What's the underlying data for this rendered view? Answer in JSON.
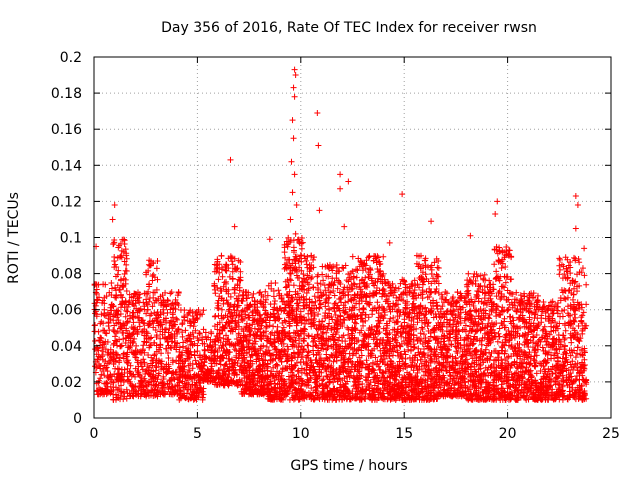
{
  "chart_data": {
    "type": "scatter",
    "title": "Day 356 of 2016, Rate Of TEC Index for receiver rwsn",
    "xlabel": "GPS time / hours",
    "ylabel": "ROTI / TECUs",
    "xlim": [
      0,
      25
    ],
    "ylim": [
      0,
      0.2
    ],
    "x_ticks": [
      "0",
      "5",
      "10",
      "15",
      "20",
      "25"
    ],
    "y_ticks": [
      "0",
      "0.02",
      "0.04",
      "0.06",
      "0.08",
      "0.1",
      "0.12",
      "0.14",
      "0.16",
      "0.18",
      "0.2"
    ],
    "grid": true,
    "marker": "+",
    "color": "#ff0000",
    "notable_points": [
      {
        "x": 9.7,
        "y": 0.193
      },
      {
        "x": 9.75,
        "y": 0.19
      },
      {
        "x": 9.65,
        "y": 0.183
      },
      {
        "x": 9.7,
        "y": 0.178
      },
      {
        "x": 9.6,
        "y": 0.165
      },
      {
        "x": 9.65,
        "y": 0.155
      },
      {
        "x": 9.55,
        "y": 0.142
      },
      {
        "x": 9.7,
        "y": 0.135
      },
      {
        "x": 9.6,
        "y": 0.125
      },
      {
        "x": 9.8,
        "y": 0.118
      },
      {
        "x": 9.5,
        "y": 0.11
      },
      {
        "x": 9.75,
        "y": 0.102
      },
      {
        "x": 10.8,
        "y": 0.169
      },
      {
        "x": 10.85,
        "y": 0.151
      },
      {
        "x": 11.9,
        "y": 0.135
      },
      {
        "x": 12.3,
        "y": 0.131
      },
      {
        "x": 11.9,
        "y": 0.127
      },
      {
        "x": 6.6,
        "y": 0.143
      },
      {
        "x": 14.9,
        "y": 0.124
      },
      {
        "x": 1.0,
        "y": 0.118
      },
      {
        "x": 0.9,
        "y": 0.11
      },
      {
        "x": 19.5,
        "y": 0.12
      },
      {
        "x": 19.4,
        "y": 0.113
      },
      {
        "x": 23.3,
        "y": 0.123
      },
      {
        "x": 23.4,
        "y": 0.118
      },
      {
        "x": 10.9,
        "y": 0.115
      },
      {
        "x": 16.3,
        "y": 0.109
      },
      {
        "x": 23.3,
        "y": 0.105
      },
      {
        "x": 6.8,
        "y": 0.106
      },
      {
        "x": 8.5,
        "y": 0.099
      },
      {
        "x": 18.2,
        "y": 0.101
      },
      {
        "x": 0.1,
        "y": 0.095
      },
      {
        "x": 23.7,
        "y": 0.094
      },
      {
        "x": 14.3,
        "y": 0.097
      },
      {
        "x": 12.1,
        "y": 0.106
      }
    ],
    "activity_profile": [
      {
        "from": 0,
        "to": 0.9,
        "low": 0.013,
        "high": 0.075,
        "density": 6
      },
      {
        "from": 0.9,
        "to": 1.6,
        "low": 0.01,
        "high": 0.1,
        "density": 9
      },
      {
        "from": 1.6,
        "to": 2.5,
        "low": 0.012,
        "high": 0.07,
        "density": 7
      },
      {
        "from": 2.5,
        "to": 3.1,
        "low": 0.012,
        "high": 0.088,
        "density": 8
      },
      {
        "from": 3.1,
        "to": 4.1,
        "low": 0.013,
        "high": 0.07,
        "density": 7
      },
      {
        "from": 4.1,
        "to": 5.3,
        "low": 0.01,
        "high": 0.06,
        "density": 7
      },
      {
        "from": 5.3,
        "to": 5.8,
        "low": 0.02,
        "high": 0.048,
        "density": 5
      },
      {
        "from": 5.8,
        "to": 7.1,
        "low": 0.018,
        "high": 0.09,
        "density": 9
      },
      {
        "from": 7.1,
        "to": 8.4,
        "low": 0.013,
        "high": 0.07,
        "density": 10
      },
      {
        "from": 8.4,
        "to": 9.2,
        "low": 0.01,
        "high": 0.075,
        "density": 9
      },
      {
        "from": 9.2,
        "to": 10.1,
        "low": 0.01,
        "high": 0.1,
        "density": 12
      },
      {
        "from": 10.1,
        "to": 11.0,
        "low": 0.01,
        "high": 0.09,
        "density": 9
      },
      {
        "from": 11.0,
        "to": 12.5,
        "low": 0.01,
        "high": 0.085,
        "density": 10
      },
      {
        "from": 12.5,
        "to": 14.0,
        "low": 0.01,
        "high": 0.09,
        "density": 10
      },
      {
        "from": 14.0,
        "to": 15.6,
        "low": 0.01,
        "high": 0.077,
        "density": 10
      },
      {
        "from": 15.6,
        "to": 16.7,
        "low": 0.01,
        "high": 0.09,
        "density": 10
      },
      {
        "from": 16.7,
        "to": 18.0,
        "low": 0.012,
        "high": 0.07,
        "density": 9
      },
      {
        "from": 18.0,
        "to": 19.3,
        "low": 0.01,
        "high": 0.08,
        "density": 10
      },
      {
        "from": 19.3,
        "to": 20.2,
        "low": 0.01,
        "high": 0.095,
        "density": 10
      },
      {
        "from": 20.2,
        "to": 21.5,
        "low": 0.01,
        "high": 0.07,
        "density": 9
      },
      {
        "from": 21.5,
        "to": 22.5,
        "low": 0.01,
        "high": 0.065,
        "density": 8
      },
      {
        "from": 22.5,
        "to": 23.8,
        "low": 0.01,
        "high": 0.09,
        "density": 8
      }
    ]
  }
}
